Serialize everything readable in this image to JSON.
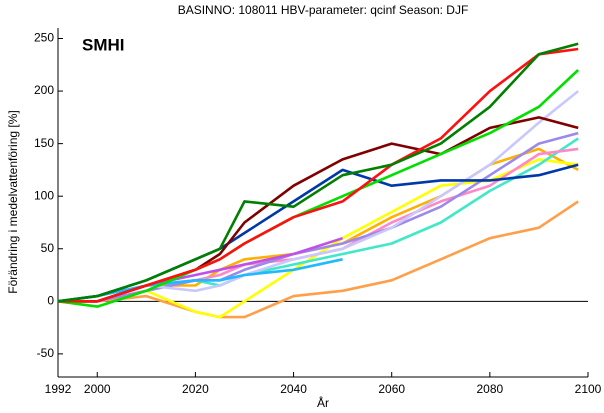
{
  "chart_data": {
    "type": "line",
    "title": "BASINNO: 108011    HBV-parameter: qcinf    Season: DJF",
    "logo": "SMHI",
    "x_label": "År",
    "y_label": "Förändring i medelvattenföring [%]",
    "x": [
      1992,
      2000,
      2010,
      2020,
      2025,
      2030,
      2040,
      2050,
      2060,
      2070,
      2080,
      2090,
      2098
    ],
    "xlim": [
      1992,
      2100
    ],
    "xticks": [
      1992,
      2000,
      2020,
      2040,
      2060,
      2080,
      2100
    ],
    "ylim": [
      -72,
      260
    ],
    "yticks": [
      -50,
      0,
      50,
      100,
      150,
      200,
      250
    ],
    "zero_line": true,
    "series": [
      {
        "name": null,
        "color": "#ff9f4a",
        "values": [
          0,
          0,
          5,
          -10,
          -15,
          -15,
          5,
          10,
          20,
          40,
          60,
          70,
          95
        ]
      },
      {
        "name": null,
        "color": "#ffb000",
        "values": [
          0,
          0,
          15,
          15,
          30,
          40,
          45,
          55,
          80,
          100,
          130,
          145,
          125
        ]
      },
      {
        "name": null,
        "color": "#ffff00",
        "values": [
          0,
          0,
          10,
          -10,
          -15,
          0,
          30,
          60,
          85,
          110,
          115,
          135,
          130
        ]
      },
      {
        "name": null,
        "color": "#40e8c8",
        "values": [
          0,
          0,
          15,
          20,
          15,
          25,
          35,
          45,
          55,
          75,
          105,
          130,
          155
        ]
      },
      {
        "name": null,
        "color": "#ff88c8",
        "values": [
          0,
          0,
          10,
          20,
          25,
          35,
          40,
          50,
          75,
          95,
          110,
          140,
          145
        ]
      },
      {
        "name": null,
        "color": "#9c8ae8",
        "values": [
          0,
          0,
          10,
          20,
          20,
          30,
          45,
          55,
          70,
          90,
          120,
          150,
          160
        ]
      },
      {
        "name": null,
        "color": "#c8c8ff",
        "values": [
          0,
          0,
          15,
          10,
          15,
          25,
          40,
          50,
          70,
          100,
          130,
          170,
          200
        ]
      },
      {
        "name": null,
        "color": "#c050e8",
        "values": [
          0,
          0,
          15,
          25,
          30,
          35,
          45,
          60,
          null,
          null,
          null,
          null,
          null
        ]
      },
      {
        "name": null,
        "color": "#20b8ff",
        "values": [
          0,
          5,
          15,
          20,
          20,
          25,
          30,
          40,
          null,
          null,
          null,
          null,
          null
        ]
      },
      {
        "name": null,
        "color": "#0038a8",
        "values": [
          0,
          5,
          20,
          40,
          50,
          65,
          95,
          125,
          110,
          115,
          115,
          120,
          130
        ]
      },
      {
        "name": null,
        "color": "#800000",
        "values": [
          0,
          0,
          15,
          30,
          45,
          75,
          110,
          135,
          150,
          140,
          165,
          175,
          165
        ]
      },
      {
        "name": null,
        "color": "#00e000",
        "values": [
          0,
          -5,
          10,
          30,
          40,
          55,
          80,
          100,
          120,
          140,
          160,
          185,
          220
        ]
      },
      {
        "name": null,
        "color": "#ff1010",
        "values": [
          0,
          0,
          15,
          30,
          40,
          55,
          80,
          95,
          130,
          155,
          200,
          235,
          240
        ]
      },
      {
        "name": null,
        "color": "#008000",
        "values": [
          0,
          5,
          20,
          40,
          50,
          95,
          90,
          120,
          130,
          150,
          185,
          235,
          245
        ]
      }
    ]
  }
}
